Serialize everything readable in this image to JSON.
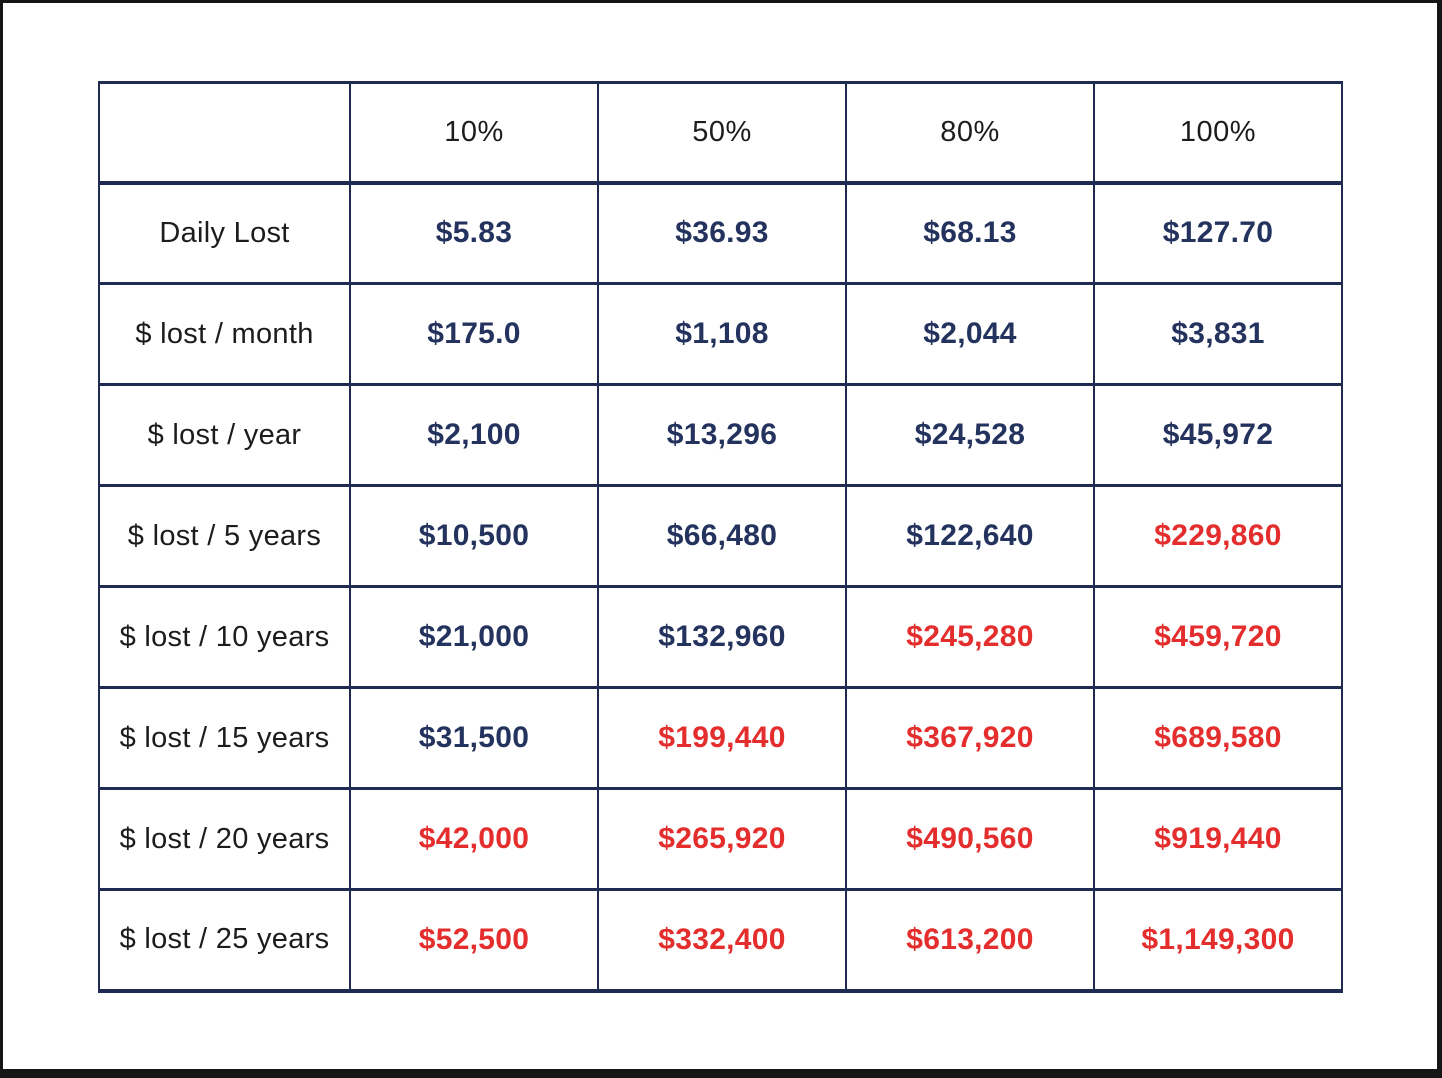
{
  "colors": {
    "navy_value": "#24335e",
    "red_value": "#e42d2d",
    "table_border": "#1f2b50",
    "label_text": "#1c1c1c",
    "page_background": "#ffffff",
    "frame": "#161616"
  },
  "chart_data": {
    "type": "table",
    "title": "",
    "column_headers": [
      "",
      "10%",
      "50%",
      "80%",
      "100%"
    ],
    "rows": [
      {
        "label": "Daily Lost",
        "values": [
          "$5.83",
          "$36.93",
          "$68.13",
          "$127.70"
        ],
        "value_colors": [
          "#24335e",
          "#24335e",
          "#24335e",
          "#24335e"
        ]
      },
      {
        "label": "$ lost / month",
        "values": [
          "$175.0",
          "$1,108",
          "$2,044",
          "$3,831"
        ],
        "value_colors": [
          "#24335e",
          "#24335e",
          "#24335e",
          "#24335e"
        ]
      },
      {
        "label": "$ lost / year",
        "values": [
          "$2,100",
          "$13,296",
          "$24,528",
          "$45,972"
        ],
        "value_colors": [
          "#24335e",
          "#24335e",
          "#24335e",
          "#24335e"
        ]
      },
      {
        "label": "$ lost / 5 years",
        "values": [
          "$10,500",
          "$66,480",
          "$122,640",
          "$229,860"
        ],
        "value_colors": [
          "#24335e",
          "#24335e",
          "#24335e",
          "#e42d2d"
        ]
      },
      {
        "label": "$ lost / 10 years",
        "values": [
          "$21,000",
          "$132,960",
          "$245,280",
          "$459,720"
        ],
        "value_colors": [
          "#24335e",
          "#24335e",
          "#e42d2d",
          "#e42d2d"
        ]
      },
      {
        "label": "$ lost / 15 years",
        "values": [
          "$31,500",
          "$199,440",
          "$367,920",
          "$689,580"
        ],
        "value_colors": [
          "#24335e",
          "#e42d2d",
          "#e42d2d",
          "#e42d2d"
        ]
      },
      {
        "label": "$ lost / 20 years",
        "values": [
          "$42,000",
          "$265,920",
          "$490,560",
          "$919,440"
        ],
        "value_colors": [
          "#e42d2d",
          "#e42d2d",
          "#e42d2d",
          "#e42d2d"
        ]
      },
      {
        "label": "$ lost / 25 years",
        "values": [
          "$52,500",
          "$332,400",
          "$613,200",
          "$1,149,300"
        ],
        "value_colors": [
          "#e42d2d",
          "#e42d2d",
          "#e42d2d",
          "#e42d2d"
        ]
      }
    ]
  }
}
